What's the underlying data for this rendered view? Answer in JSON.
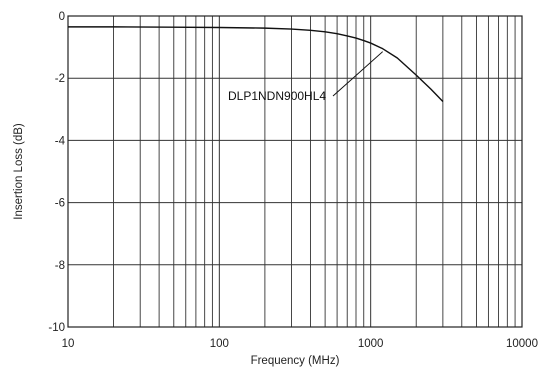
{
  "chart_data": {
    "type": "line",
    "title": "",
    "xlabel": "Frequency (MHz)",
    "ylabel": "Insertion Loss (dB)",
    "x_scale": "log",
    "xlim": [
      10,
      10000
    ],
    "ylim": [
      -10,
      0
    ],
    "x_tick_labels": [
      "10",
      "100",
      "1000",
      "10000"
    ],
    "y_tick_labels": [
      "0",
      "-2",
      "-4",
      "-6",
      "-8",
      "-10"
    ],
    "grid": true,
    "series": [
      {
        "name": "DLP1NDN900HL4",
        "x": [
          10,
          20,
          50,
          100,
          200,
          300,
          400,
          500,
          600,
          700,
          800,
          900,
          1000,
          1200,
          1500,
          2000,
          2500,
          3000
        ],
        "y": [
          -0.35,
          -0.35,
          -0.36,
          -0.37,
          -0.39,
          -0.42,
          -0.46,
          -0.51,
          -0.57,
          -0.64,
          -0.71,
          -0.79,
          -0.87,
          -1.05,
          -1.35,
          -1.9,
          -2.35,
          -2.75
        ]
      }
    ],
    "annotations": [
      {
        "text": "DLP1NDN900HL4",
        "points_to": {
          "x": 1200,
          "y": -1.05
        }
      }
    ],
    "colors": {
      "line": "#111111",
      "grid": "#333333",
      "frame": "#222222"
    }
  }
}
